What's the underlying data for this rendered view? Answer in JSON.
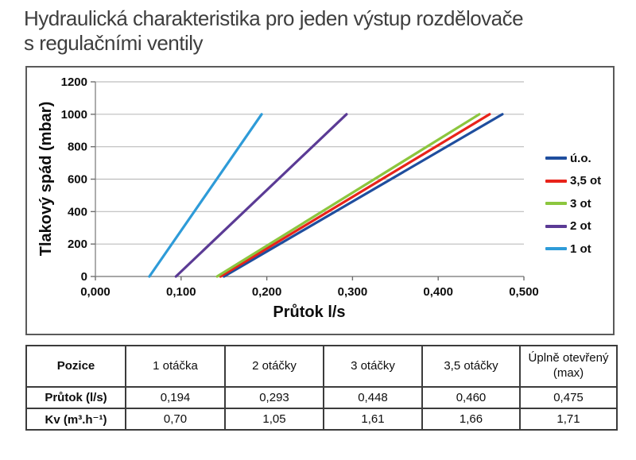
{
  "header": {
    "title_line1": "Hydraulická charakteristika pro jeden výstup rozdělovače",
    "title_line2": "s regulačními ventily"
  },
  "chart_data": {
    "type": "line",
    "title": "",
    "xlabel": "Průtok l/s",
    "ylabel": "Tlakový spád (mbar)",
    "xlim": [
      0,
      0.5
    ],
    "ylim": [
      0,
      1200
    ],
    "x_ticks": [
      0,
      0.1,
      0.2,
      0.3,
      0.4,
      0.5
    ],
    "x_tick_labels": [
      "0,000",
      "0,100",
      "0,200",
      "0,300",
      "0,400",
      "0,500"
    ],
    "y_ticks": [
      0,
      200,
      400,
      600,
      800,
      1000,
      1200
    ],
    "y_tick_labels": [
      "0",
      "200",
      "400",
      "600",
      "800",
      "1000",
      "1200"
    ],
    "grid": "horizontal-only",
    "legend_position": "right",
    "series": [
      {
        "name": "ú.o.",
        "color": "#1F4E9E",
        "points": [
          [
            0.15,
            0
          ],
          [
            0.475,
            1000
          ]
        ]
      },
      {
        "name": "3,5 ot",
        "color": "#E8231A",
        "points": [
          [
            0.146,
            0
          ],
          [
            0.46,
            1000
          ]
        ]
      },
      {
        "name": "3 ot",
        "color": "#8CC63E",
        "points": [
          [
            0.142,
            0
          ],
          [
            0.448,
            1000
          ]
        ]
      },
      {
        "name": "2 ot",
        "color": "#5B3B95",
        "points": [
          [
            0.094,
            0
          ],
          [
            0.293,
            1000
          ]
        ]
      },
      {
        "name": "1 ot",
        "color": "#2E9BD8",
        "points": [
          [
            0.063,
            0
          ],
          [
            0.194,
            1000
          ]
        ]
      }
    ]
  },
  "table": {
    "header": [
      "Pozice",
      "1 otáčka",
      "2 otáčky",
      "3 otáčky",
      "3,5 otáčky",
      "Úplně otevřený (max)"
    ],
    "rows": [
      {
        "label": "Průtok (l/s)",
        "values": [
          "0,194",
          "0,293",
          "0,448",
          "0,460",
          "0,475"
        ]
      },
      {
        "label": "Kv (m³.h⁻¹)",
        "values": [
          "0,70",
          "1,05",
          "1,61",
          "1,66",
          "1,71"
        ]
      }
    ]
  }
}
